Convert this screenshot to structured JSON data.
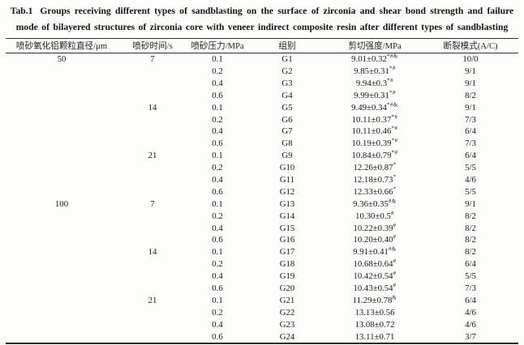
{
  "table": {
    "caption_label": "Tab.1",
    "caption_line1": "Groups receiving different types of sandblasting on the surface of zirconia and shear bond strength and failure",
    "caption_line2": "mode of bilayered structures of zirconia core with veneer indirect composite resin after different types of sandblasting",
    "columns": [
      "喷砂氧化铝颗粒直径/μm",
      "喷砂时间/s",
      "喷砂压力/MPa",
      "组别",
      "剪切强度/MPa",
      "断裂模式(A/C)"
    ],
    "rows": [
      {
        "diameter": "50",
        "time": "7",
        "pressure": "0.1",
        "group": "G1",
        "strength": "9.01±0.32",
        "sup": "*#&",
        "mode": "10/0"
      },
      {
        "diameter": "",
        "time": "",
        "pressure": "0.2",
        "group": "G2",
        "strength": "9.85±0.31",
        "sup": "*#",
        "mode": "9/1"
      },
      {
        "diameter": "",
        "time": "",
        "pressure": "0.4",
        "group": "G3",
        "strength": "9.94±0.3",
        "sup": "*#",
        "mode": "9/1"
      },
      {
        "diameter": "",
        "time": "",
        "pressure": "0.6",
        "group": "G4",
        "strength": "9.99±0.31",
        "sup": "*#",
        "mode": "8/2"
      },
      {
        "diameter": "",
        "time": "14",
        "pressure": "0.1",
        "group": "G5",
        "strength": "9.49±0.34",
        "sup": "*#&",
        "mode": "9/1"
      },
      {
        "diameter": "",
        "time": "",
        "pressure": "0.2",
        "group": "G6",
        "strength": "10.11±0.37",
        "sup": "*#",
        "mode": "7/3"
      },
      {
        "diameter": "",
        "time": "",
        "pressure": "0.4",
        "group": "G7",
        "strength": "10.11±0.46",
        "sup": "*#",
        "mode": "6/4"
      },
      {
        "diameter": "",
        "time": "",
        "pressure": "0.6",
        "group": "G8",
        "strength": "10.19±0.39",
        "sup": "*#",
        "mode": "7/3"
      },
      {
        "diameter": "",
        "time": "21",
        "pressure": "0.1",
        "group": "G9",
        "strength": "10.84±0.79",
        "sup": "*#",
        "mode": "6/4"
      },
      {
        "diameter": "",
        "time": "",
        "pressure": "0.2",
        "group": "G10",
        "strength": "12.26±0.87",
        "sup": "*",
        "mode": "5/5"
      },
      {
        "diameter": "",
        "time": "",
        "pressure": "0.4",
        "group": "G11",
        "strength": "12.18±0.73",
        "sup": "*",
        "mode": "4/6"
      },
      {
        "diameter": "",
        "time": "",
        "pressure": "0.6",
        "group": "G12",
        "strength": "12.33±0.66",
        "sup": "*",
        "mode": "5/5"
      },
      {
        "diameter": "100",
        "time": "7",
        "pressure": "0.1",
        "group": "G13",
        "strength": "9.36±0.35",
        "sup": "#&",
        "mode": "9/1"
      },
      {
        "diameter": "",
        "time": "",
        "pressure": "0.2",
        "group": "G14",
        "strength": "10.30±0.5",
        "sup": "#",
        "mode": "8/2"
      },
      {
        "diameter": "",
        "time": "",
        "pressure": "0.4",
        "group": "G15",
        "strength": "10.22±0.39",
        "sup": "#",
        "mode": "8/2"
      },
      {
        "diameter": "",
        "time": "",
        "pressure": "0.6",
        "group": "G16",
        "strength": "10.20±0.40",
        "sup": "#",
        "mode": "8/2"
      },
      {
        "diameter": "",
        "time": "14",
        "pressure": "0.1",
        "group": "G17",
        "strength": "9.91±0.41",
        "sup": "#&",
        "mode": "8/2"
      },
      {
        "diameter": "",
        "time": "",
        "pressure": "0.2",
        "group": "G18",
        "strength": "10.68±0.64",
        "sup": "#",
        "mode": "6/4"
      },
      {
        "diameter": "",
        "time": "",
        "pressure": "0.4",
        "group": "G19",
        "strength": "10.42±0.54",
        "sup": "#",
        "mode": "5/5"
      },
      {
        "diameter": "",
        "time": "",
        "pressure": "0.6",
        "group": "G20",
        "strength": "10.43±0.54",
        "sup": "#",
        "mode": "7/3"
      },
      {
        "diameter": "",
        "time": "21",
        "pressure": "0.1",
        "group": "G21",
        "strength": "11.29±0.78",
        "sup": "&",
        "mode": "6/4"
      },
      {
        "diameter": "",
        "time": "",
        "pressure": "0.2",
        "group": "G22",
        "strength": "13.13±0.56",
        "sup": "",
        "mode": "4/6"
      },
      {
        "diameter": "",
        "time": "",
        "pressure": "0.4",
        "group": "G23",
        "strength": "13.08±0.72",
        "sup": "",
        "mode": "4/6"
      },
      {
        "diameter": "",
        "time": "",
        "pressure": "0.6",
        "group": "G24",
        "strength": "13.11±0.71",
        "sup": "",
        "mode": "3/7"
      }
    ]
  }
}
